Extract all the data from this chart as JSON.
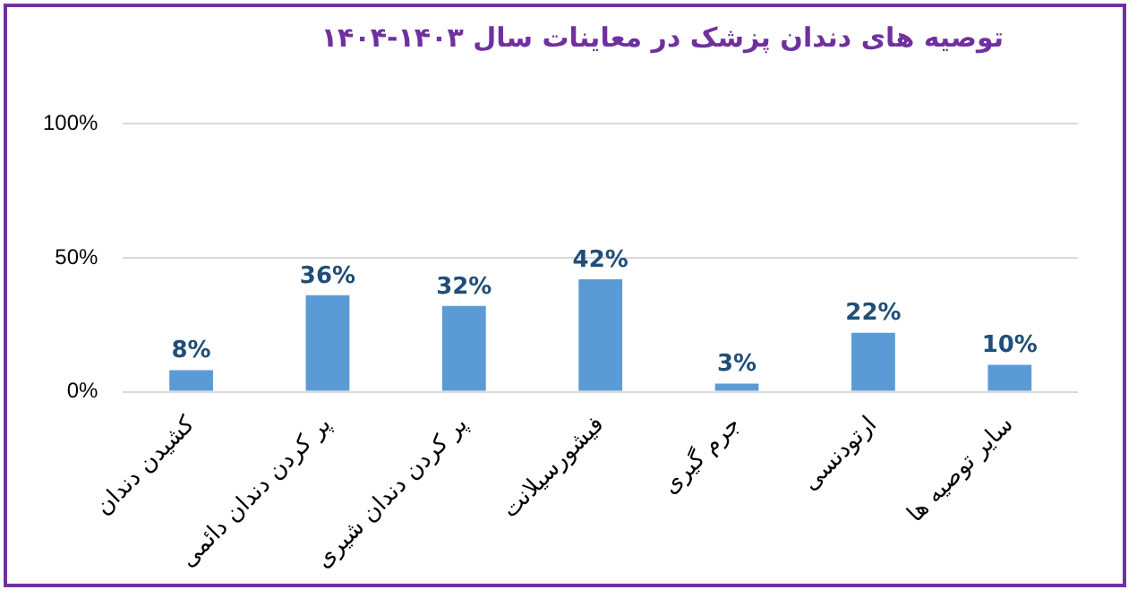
{
  "chart_data": {
    "type": "bar",
    "title": "توصیه های دندان پزشک در معاینات سال ۱۴۰۳-۱۴۰۴",
    "categories": [
      "کشیدن دندان",
      "پر کردن دندان دائمی",
      "پر کردن دندان شیری",
      "فیشورسیلانت",
      "جرم گیری",
      "ارتودنسی",
      "سایر توصیه ها"
    ],
    "values": [
      8,
      36,
      32,
      42,
      3,
      22,
      10
    ],
    "value_labels": [
      "8%",
      "36%",
      "32%",
      "42%",
      "3%",
      "22%",
      "10%"
    ],
    "color": "#5b9bd5",
    "ylim": [
      0,
      100
    ],
    "yticks": [
      {
        "value": 0,
        "label": "0%"
      },
      {
        "value": 50,
        "label": "50%"
      },
      {
        "value": 100,
        "label": "100%"
      }
    ],
    "grid": "y",
    "legend": false
  }
}
